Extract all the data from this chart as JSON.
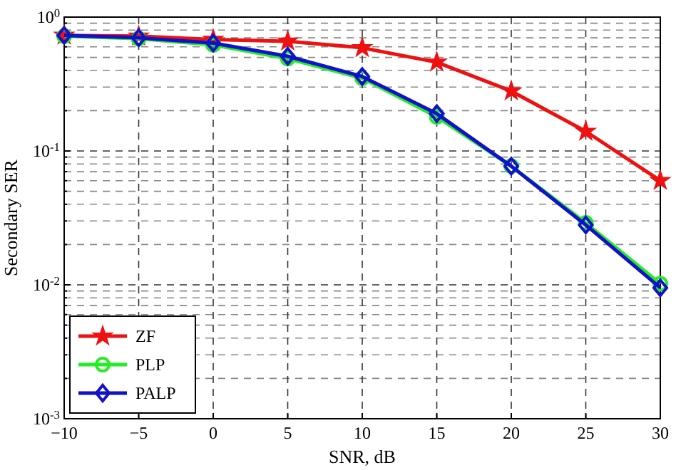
{
  "chart_data": {
    "type": "line",
    "xlabel": "SNR, dB",
    "ylabel": "Secondary SER",
    "log": "y",
    "grid": true,
    "legend": "bottom left",
    "line_style": "solid",
    "x": [
      -10,
      -5,
      0,
      5,
      10,
      15,
      20,
      25,
      30
    ],
    "xlim": [
      -10,
      30
    ],
    "xticks": [
      {
        "value": -10,
        "label": "−10"
      },
      {
        "value": -5,
        "label": "−5"
      },
      0,
      5,
      10,
      15,
      20,
      25,
      30
    ],
    "ylim": [
      0.001,
      1
    ],
    "yticks": [
      {
        "value": 0.001,
        "label": "10$^{-3}$"
      },
      {
        "value": 0.002,
        "label": null
      },
      {
        "value": 0.003,
        "label": null
      },
      {
        "value": 0.004,
        "label": null
      },
      {
        "value": 0.005,
        "label": null
      },
      {
        "value": 0.006,
        "label": null
      },
      {
        "value": 0.007,
        "label": null
      },
      {
        "value": 0.008,
        "label": null
      },
      {
        "value": 0.009,
        "label": null
      },
      {
        "value": 0.01,
        "label": "10$^{-2}$"
      },
      {
        "value": 0.02,
        "label": null
      },
      {
        "value": 0.03,
        "label": null
      },
      {
        "value": 0.04,
        "label": null
      },
      {
        "value": 0.05,
        "label": null
      },
      {
        "value": 0.06,
        "label": null
      },
      {
        "value": 0.07,
        "label": null
      },
      {
        "value": 0.08,
        "label": null
      },
      {
        "value": 0.09,
        "label": null
      },
      {
        "value": 0.1,
        "label": "10$^{-1}$"
      },
      {
        "value": 0.2,
        "label": null
      },
      {
        "value": 0.3,
        "label": null
      },
      {
        "value": 0.4,
        "label": null
      },
      {
        "value": 0.5,
        "label": null
      },
      {
        "value": 0.6,
        "label": null
      },
      {
        "value": 0.7,
        "label": null
      },
      {
        "value": 0.8,
        "label": null
      },
      {
        "value": 0.9,
        "label": null
      },
      {
        "value": 1,
        "label": "10$^{0}$"
      }
    ],
    "series": [
      {
        "name": "ZF",
        "color": "#ee1111",
        "marker": "star",
        "values": [
          0.73,
          0.72,
          0.68,
          0.66,
          0.59,
          0.46,
          0.28,
          0.14,
          0.06
        ]
      },
      {
        "name": "PLP",
        "color": "#22ee22",
        "marker": "circle",
        "values": [
          0.72,
          0.69,
          0.62,
          0.49,
          0.35,
          0.18,
          0.077,
          0.029,
          0.0102
        ]
      },
      {
        "name": "PALP",
        "color": "#1111cc",
        "marker": "diamond",
        "values": [
          0.73,
          0.7,
          0.64,
          0.51,
          0.36,
          0.19,
          0.077,
          0.028,
          0.0095
        ]
      }
    ]
  }
}
